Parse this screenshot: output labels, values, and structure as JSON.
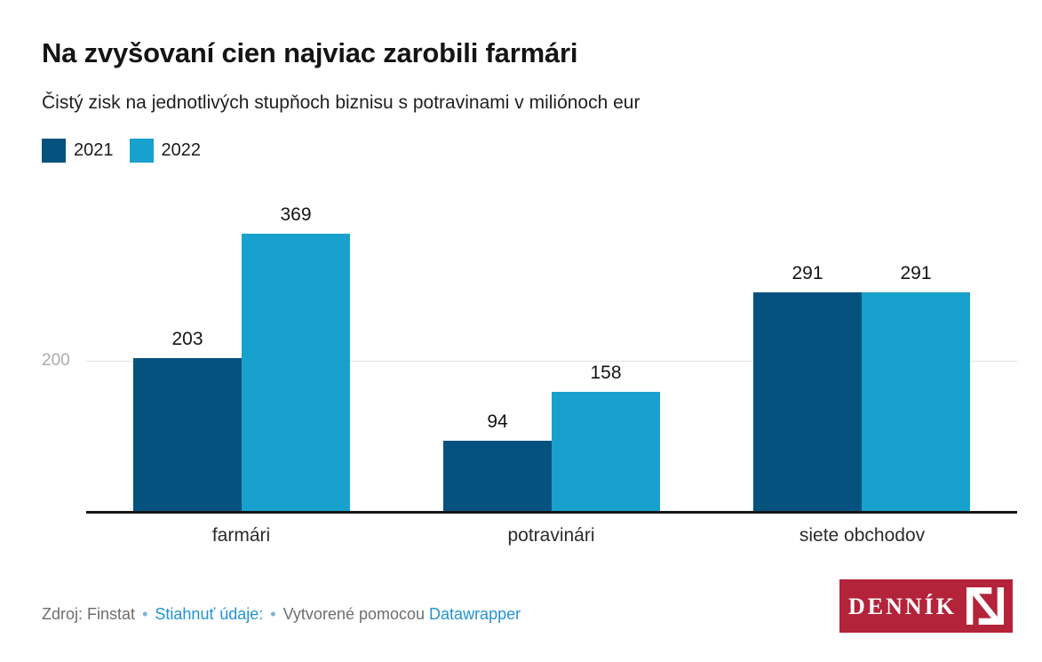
{
  "header": {
    "title": "Na zvyšovaní cien najviac zarobili farmári",
    "subtitle": "Čistý zisk na jednotlivých stupňoch biznisu s potravinami v miliónoch eur"
  },
  "legend": {
    "items": [
      {
        "label": "2021",
        "color": "#06527e"
      },
      {
        "label": "2022",
        "color": "#18a1cd"
      }
    ]
  },
  "chart_data": {
    "type": "bar",
    "categories": [
      "farmári",
      "potravinári",
      "siete obchodov"
    ],
    "series": [
      {
        "name": "2021",
        "color": "#06527e",
        "values": [
          203,
          94,
          291
        ]
      },
      {
        "name": "2022",
        "color": "#18a1cd",
        "values": [
          369,
          158,
          291
        ]
      }
    ],
    "title": "Na zvyšovaní cien najviac zarobili farmári",
    "subtitle": "Čistý zisk na jednotlivých stupňoch biznisu s potravinami v miliónoch eur",
    "xlabel": "",
    "ylabel": "",
    "ylim": [
      0,
      400
    ],
    "y_ticks": [
      200
    ],
    "grid": "single horizontal gridline at 200, behind bars",
    "legend_position": "top-left",
    "value_labels": true,
    "baseline_color": "#17171a",
    "gridline_color": "#e2e2e2",
    "tick_label_color": "#ababab"
  },
  "footer": {
    "source_label": "Zdroj:",
    "source": "Finstat",
    "separator": "•",
    "download_link": "Stiahnuť údaje:",
    "made_with": "Vytvorené pomocou",
    "tool_link": "Datawrapper"
  },
  "logo": {
    "text": "DENNÍK",
    "mark": "N",
    "bg_color": "#b3233a"
  }
}
